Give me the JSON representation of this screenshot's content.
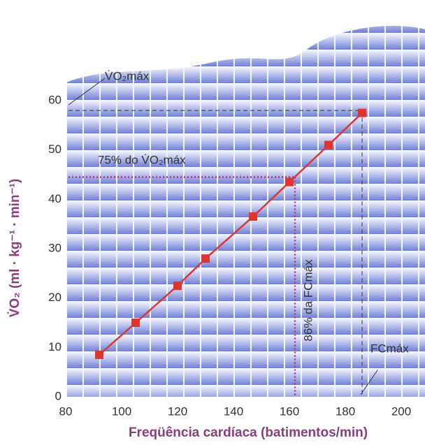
{
  "chart_data": {
    "type": "line",
    "x_label": "Freqüência cardíaca (batimentos/min)",
    "y_label": "V̇O₂ (ml · kg⁻¹ · min⁻¹)",
    "x": [
      90,
      103,
      118,
      128,
      145,
      158,
      172,
      184
    ],
    "series": [
      {
        "color": "#e0342e",
        "values": [
          8.5,
          15,
          22.5,
          28,
          36.5,
          43.5,
          51,
          57.5
        ]
      }
    ],
    "xlim": [
      80,
      206
    ],
    "ylim": [
      0,
      60
    ],
    "xticks": [
      80,
      100,
      120,
      140,
      160,
      180,
      200
    ],
    "yticks": [
      0,
      10,
      20,
      30,
      40,
      50,
      60
    ],
    "references": [
      {
        "label": "V̇O₂máx",
        "y": 58,
        "x": 184
      },
      {
        "label": "75% do V̇O₂máx",
        "y": 44.5,
        "x": 160
      },
      {
        "label": "86% da FCmáx",
        "x": 160
      },
      {
        "label": "FCmáx",
        "x": 184
      }
    ]
  }
}
